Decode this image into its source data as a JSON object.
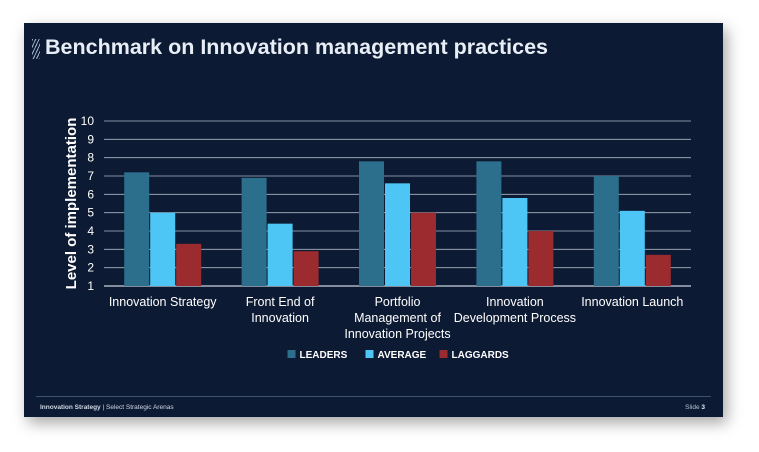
{
  "slide": {
    "title": "Benchmark on Innovation management practices",
    "footer_section": "Innovation Strategy",
    "footer_separator": " | ",
    "footer_subtitle": "Select Strategic Arenas",
    "slide_label": "Slide ",
    "slide_number": "3"
  },
  "colors": {
    "background": "#0d1a33",
    "leaders": "#2c6f8c",
    "average": "#4ec6f5",
    "laggards": "#9b2b2f",
    "gridline": "#c8d0dc",
    "text": "#ffffff"
  },
  "chart_data": {
    "type": "bar",
    "title": "",
    "xlabel": "",
    "ylabel": "Level of implementation",
    "ylim": [
      1,
      10
    ],
    "yticks": [
      "1",
      "2",
      "3",
      "4",
      "5",
      "6",
      "7",
      "8",
      "9",
      "10"
    ],
    "grid": true,
    "legend_position": "bottom",
    "categories": [
      [
        "Innovation Strategy"
      ],
      [
        "Front End of",
        "Innovation"
      ],
      [
        "Portfolio",
        "Management of",
        "Innovation Projects"
      ],
      [
        "Innovation",
        "Development Process"
      ],
      [
        "Innovation Launch"
      ]
    ],
    "series": [
      {
        "name": "LEADERS",
        "color": "#2c6f8c",
        "values": [
          7.2,
          6.9,
          7.8,
          7.8,
          7.0
        ]
      },
      {
        "name": "AVERAGE",
        "color": "#4ec6f5",
        "values": [
          5.0,
          4.4,
          6.6,
          5.8,
          5.1
        ]
      },
      {
        "name": "LAGGARDS",
        "color": "#9b2b2f",
        "values": [
          3.3,
          2.9,
          5.0,
          4.0,
          2.7
        ]
      }
    ]
  }
}
